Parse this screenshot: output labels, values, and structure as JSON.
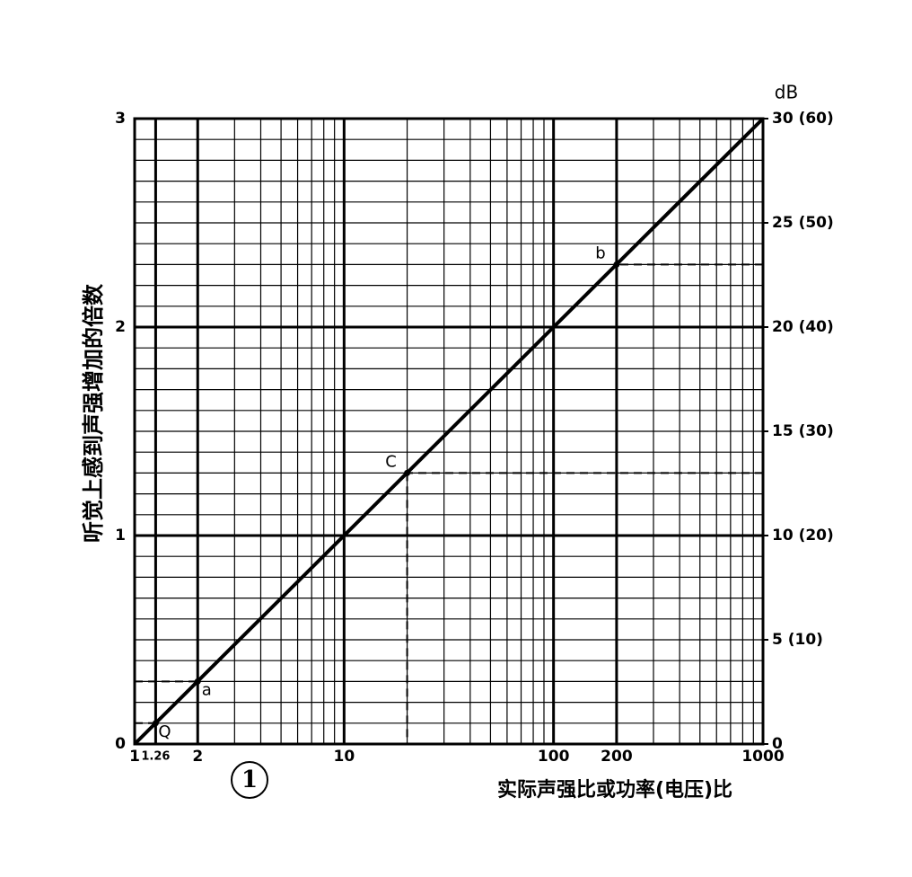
{
  "chart_data": {
    "type": "line",
    "y_label": "听觉上感到声强增加的倍数",
    "x_label": "实际声强比或功率(电压)比",
    "figure_label": "1",
    "y2_label": "dB",
    "xscale": "log",
    "grid": true,
    "xlim": [
      1,
      1000
    ],
    "xticks": [
      1,
      1.26,
      2,
      10,
      100,
      200,
      1000
    ],
    "ylim": [
      0,
      3
    ],
    "yticks": [
      0,
      1,
      2,
      3
    ],
    "y2lim": [
      0,
      30
    ],
    "y2ticks": [
      0,
      {
        "value": 5,
        "label": "5 (10)"
      },
      {
        "value": 10,
        "label": "10 (20)"
      },
      {
        "value": 15,
        "label": "15 (30)"
      },
      {
        "value": 20,
        "label": "20 (40)"
      },
      {
        "value": 25,
        "label": "25 (50)"
      },
      {
        "value": 30,
        "label": "30 (60)"
      }
    ],
    "series": [
      {
        "color": "#000000",
        "x": [
          1,
          1000
        ],
        "values": [
          0,
          3
        ]
      }
    ],
    "annotations": [
      {
        "label": "Q",
        "x": 1.26,
        "y": 0.1,
        "guide_side": "left"
      },
      {
        "label": "a",
        "x": 2,
        "y": 0.3,
        "guide_side": "left"
      },
      {
        "label": "C",
        "x": 20,
        "y": 1.3,
        "guide_side": "right"
      },
      {
        "label": "b",
        "x": 200,
        "y": 2.3,
        "guide_side": "right"
      }
    ]
  }
}
